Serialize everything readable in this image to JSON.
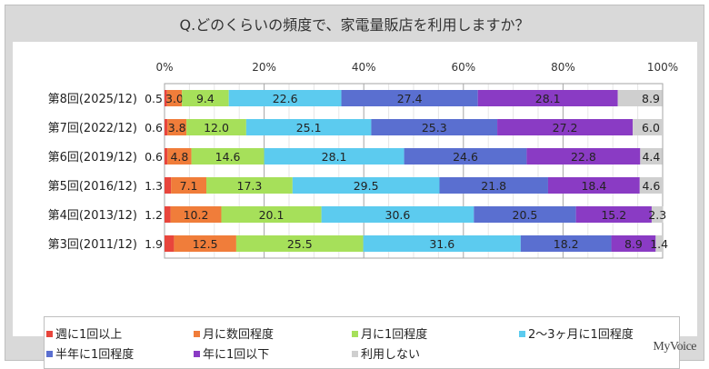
{
  "chart_data": {
    "type": "bar",
    "orientation": "horizontal",
    "stacked": true,
    "title": "Q.どのくらいの頻度で、家電量販店を利用しますか？",
    "xlim": [
      0,
      100
    ],
    "x_ticks": [
      "0%",
      "20%",
      "40%",
      "60%",
      "80%",
      "100%"
    ],
    "grid": true,
    "legend_position": "bottom",
    "categories": [
      "第8回(2025/12)",
      "第7回(2022/12)",
      "第6回(2019/12)",
      "第5回(2016/12)",
      "第4回(2013/12)",
      "第3回(2011/12)"
    ],
    "series": [
      {
        "name": "週に1回以上",
        "color": "#e8453c",
        "values": [
          0.5,
          0.6,
          0.6,
          1.3,
          1.2,
          1.9
        ]
      },
      {
        "name": "月に数回程度",
        "color": "#f07d3a",
        "values": [
          3.0,
          3.8,
          4.8,
          7.1,
          10.2,
          12.5
        ]
      },
      {
        "name": "月に1回程度",
        "color": "#a6e05a",
        "values": [
          9.4,
          12.0,
          14.6,
          17.3,
          20.1,
          25.5
        ]
      },
      {
        "name": "2～3ヶ月に1回程度",
        "color": "#5ccbef",
        "values": [
          22.6,
          25.1,
          28.1,
          29.5,
          30.6,
          31.6
        ]
      },
      {
        "name": "半年に1回程度",
        "color": "#5a6fd0",
        "values": [
          27.4,
          25.3,
          24.6,
          21.8,
          20.5,
          18.2
        ]
      },
      {
        "name": "年に1回以下",
        "color": "#8a3bc4",
        "values": [
          28.1,
          27.2,
          22.8,
          18.4,
          15.2,
          8.9
        ]
      },
      {
        "name": "利用しない",
        "color": "#cfcfcf",
        "values": [
          8.9,
          6.0,
          4.4,
          4.6,
          2.3,
          1.4
        ]
      }
    ]
  },
  "logo": "MyVoice"
}
